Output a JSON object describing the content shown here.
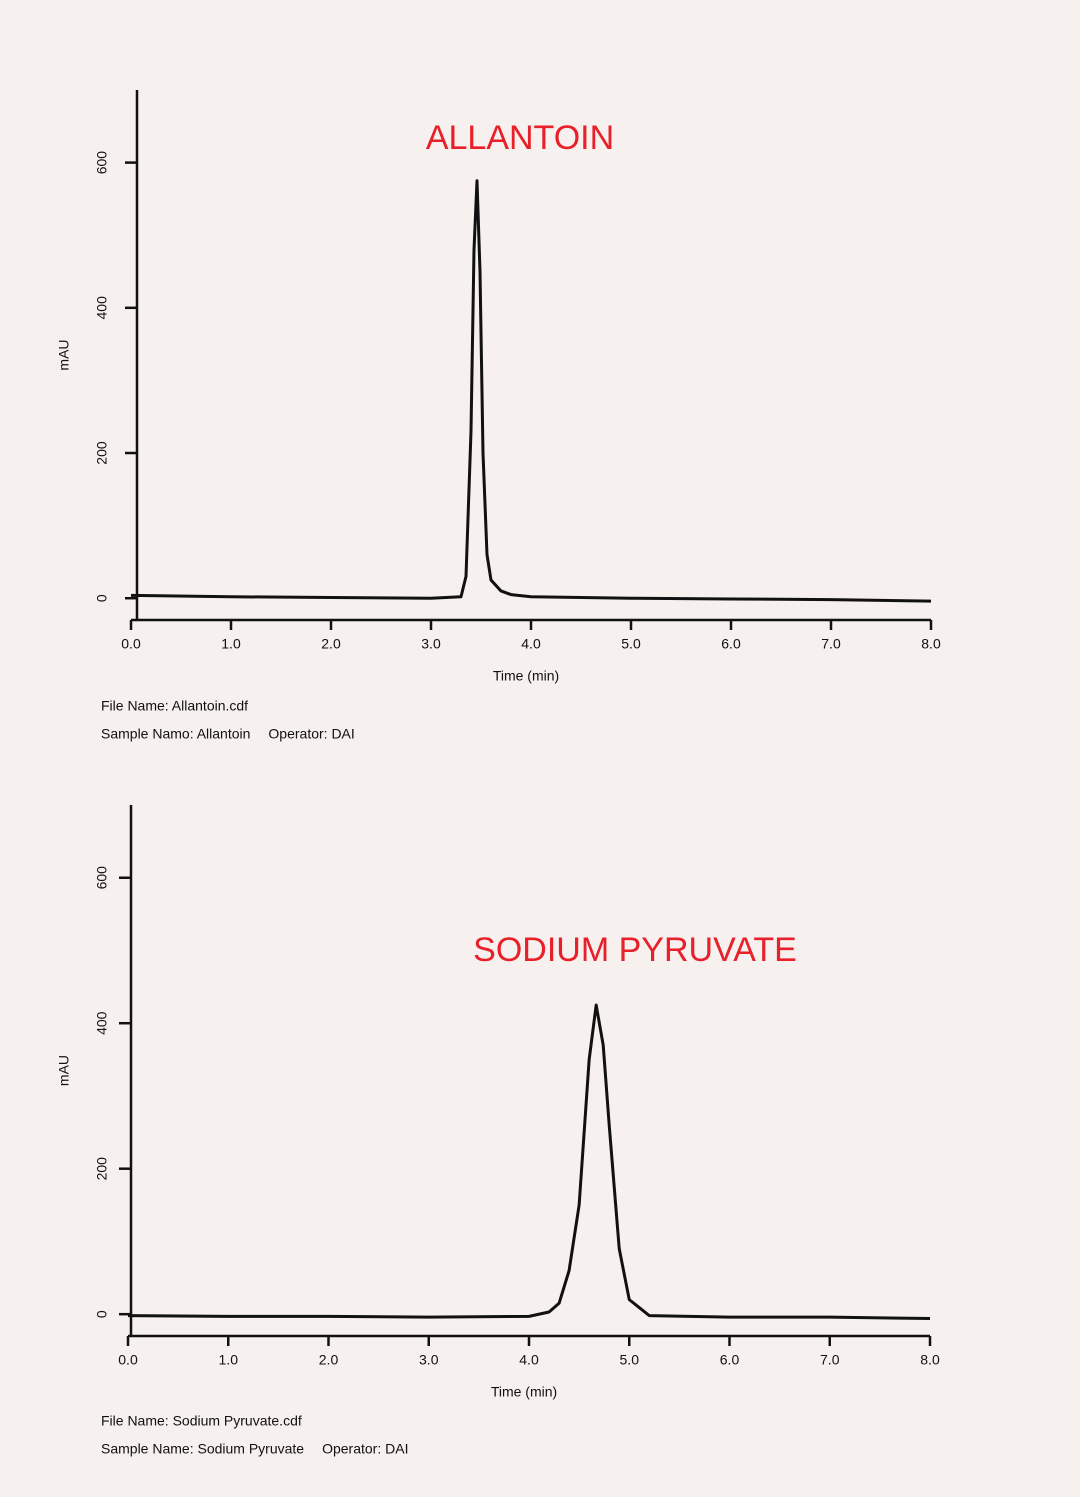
{
  "chart_data": [
    {
      "type": "line",
      "annotation": "ALLANTOIN",
      "x_label": "Time (min)",
      "y_label": "mAU",
      "x": [
        0,
        1,
        2,
        3,
        3.3,
        3.35,
        3.4,
        3.43,
        3.46,
        3.49,
        3.52,
        3.56,
        3.6,
        3.7,
        3.8,
        4,
        5,
        6,
        7,
        8
      ],
      "series": [
        {
          "name": "Allantoin",
          "color": "#111111",
          "values": [
            4,
            2,
            1,
            0,
            2,
            30,
            230,
            480,
            575,
            450,
            200,
            60,
            25,
            10,
            5,
            2,
            0,
            -1,
            -2,
            -4
          ]
        }
      ],
      "xlim": [
        0,
        8
      ],
      "xticks": [
        {
          "value": 0,
          "label": "0.0"
        },
        {
          "value": 1,
          "label": "1.0"
        },
        {
          "value": 2,
          "label": "2.0"
        },
        {
          "value": 3,
          "label": "3.0"
        },
        {
          "value": 4,
          "label": "4.0"
        },
        {
          "value": 5,
          "label": "5.0"
        },
        {
          "value": 6,
          "label": "6.0"
        },
        {
          "value": 7,
          "label": "7.0"
        },
        {
          "value": 8,
          "label": "8.0"
        }
      ],
      "ylim": [
        -30,
        700
      ],
      "yticks": [
        0,
        200,
        400,
        600
      ],
      "file_name": "File Name: Allantoin.cdf",
      "sample_name": "Sample Namo: Allantoin",
      "operator": "Operator: DAI"
    },
    {
      "type": "line",
      "annotation": "SODIUM PYRUVATE",
      "x_label": "Time (min)",
      "y_label": "mAU",
      "x": [
        0,
        1,
        2,
        3,
        4,
        4.2,
        4.3,
        4.4,
        4.5,
        4.6,
        4.67,
        4.74,
        4.8,
        4.9,
        5,
        5.2,
        6,
        7,
        8
      ],
      "series": [
        {
          "name": "Sodium Pyruvate",
          "color": "#111111",
          "values": [
            -2,
            -3,
            -3,
            -4,
            -3,
            3,
            15,
            60,
            150,
            350,
            425,
            370,
            260,
            90,
            20,
            -2,
            -4,
            -4,
            -6
          ]
        }
      ],
      "xlim": [
        0,
        8
      ],
      "xticks": [
        {
          "value": 0,
          "label": "0.0"
        },
        {
          "value": 1,
          "label": "1.0"
        },
        {
          "value": 2,
          "label": "2.0"
        },
        {
          "value": 3,
          "label": "3.0"
        },
        {
          "value": 4,
          "label": "4.0"
        },
        {
          "value": 5,
          "label": "5.0"
        },
        {
          "value": 6,
          "label": "6.0"
        },
        {
          "value": 7,
          "label": "7.0"
        },
        {
          "value": 8,
          "label": "8.0"
        }
      ],
      "ylim": [
        -30,
        700
      ],
      "yticks": [
        0,
        200,
        400,
        600
      ],
      "file_name": "File Name: Sodium Pyruvate.cdf",
      "sample_name": "Sample Name: Sodium Pyruvate",
      "operator": "Operator: DAI"
    }
  ]
}
